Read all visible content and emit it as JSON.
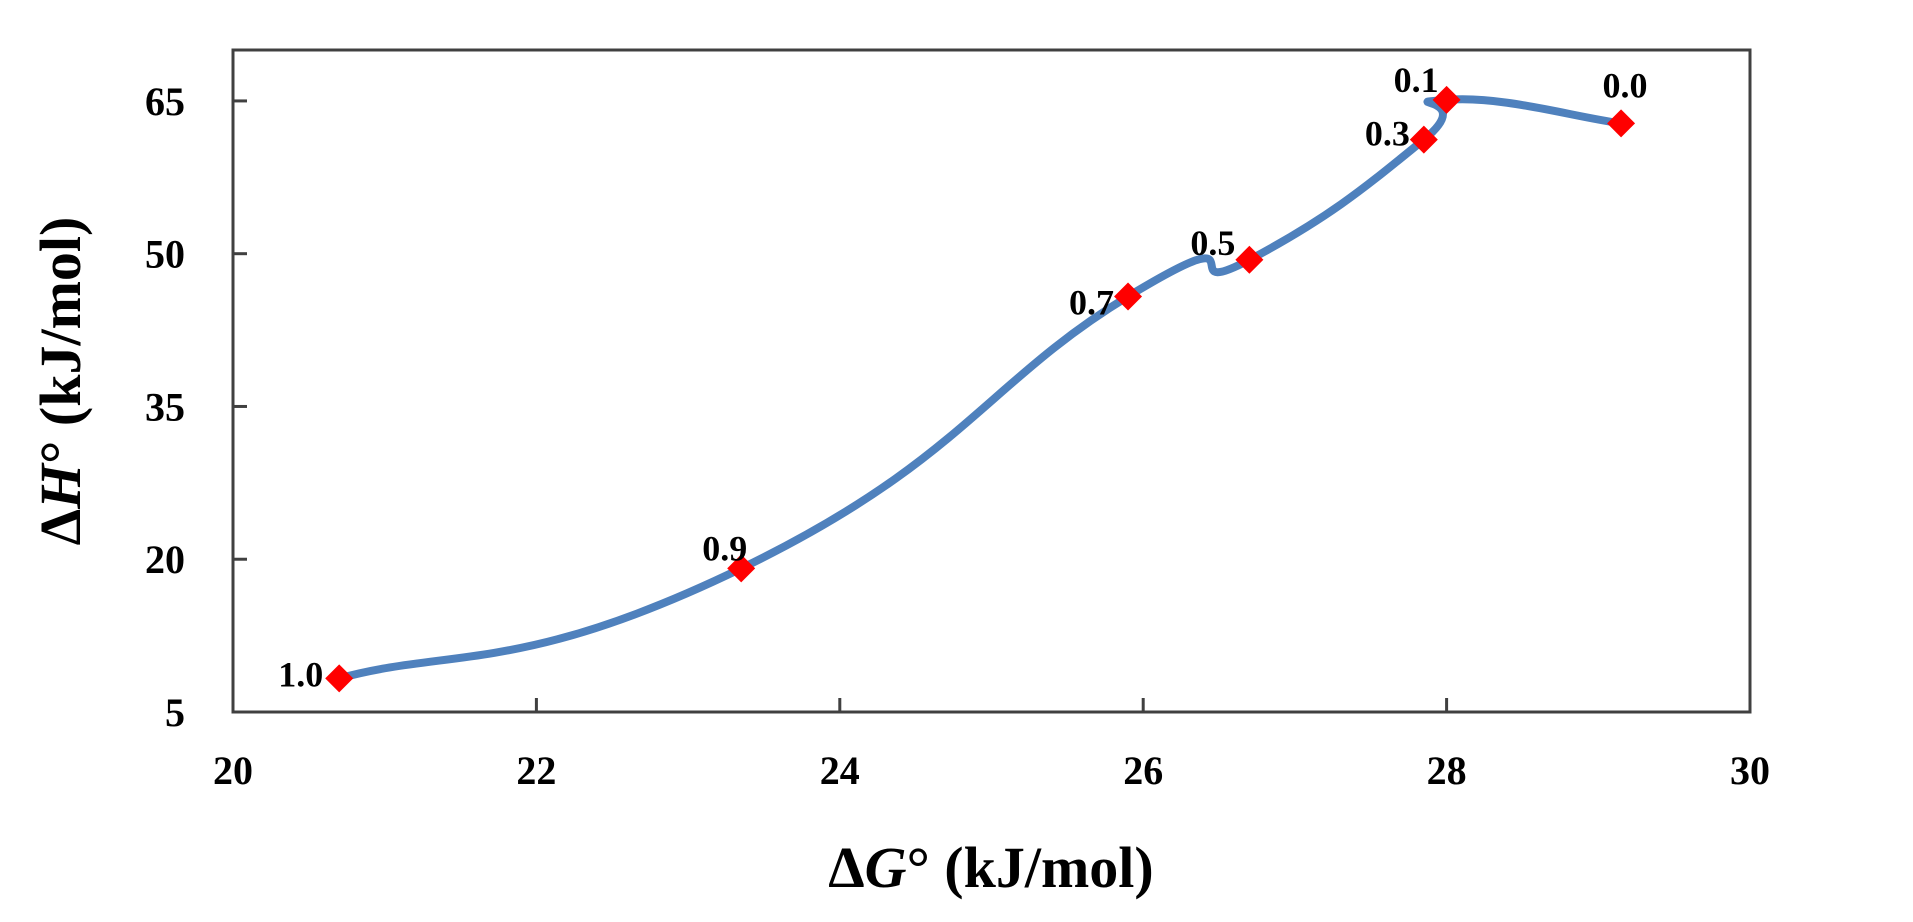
{
  "chart_data": {
    "type": "line",
    "title": "",
    "xlabel": "ΔG° (kJ/mol)",
    "ylabel": "ΔH° (kJ/mol)",
    "xlabel_parts": {
      "delta": "Δ",
      "symbol": "G",
      "degree": "°",
      "unit": " (kJ/mol)"
    },
    "ylabel_parts": {
      "delta": "Δ",
      "symbol": "H",
      "degree": "°",
      "unit": " (kJ/mol)"
    },
    "xlim": [
      20,
      30
    ],
    "ylim": [
      5,
      70
    ],
    "xticks": [
      20,
      22,
      24,
      26,
      28,
      30
    ],
    "yticks": [
      5,
      20,
      35,
      50,
      65
    ],
    "grid": false,
    "smooth": true,
    "series": [
      {
        "points": [
          {
            "x": 20.7,
            "y": 8.3,
            "label": "1.0"
          },
          {
            "x": 23.35,
            "y": 19.1,
            "label": "0.9"
          },
          {
            "x": 25.9,
            "y": 45.8,
            "label": "0.7"
          },
          {
            "x": 26.7,
            "y": 49.4,
            "label": "0.5"
          },
          {
            "x": 27.85,
            "y": 61.2,
            "label": "0.3"
          },
          {
            "x": 28.0,
            "y": 65.1,
            "label": "0.1"
          },
          {
            "x": 29.15,
            "y": 62.8,
            "label": "0.0"
          }
        ]
      }
    ],
    "colors": {
      "line": "#4F81BD",
      "marker": "#FF0000",
      "axis": "#404040"
    }
  }
}
